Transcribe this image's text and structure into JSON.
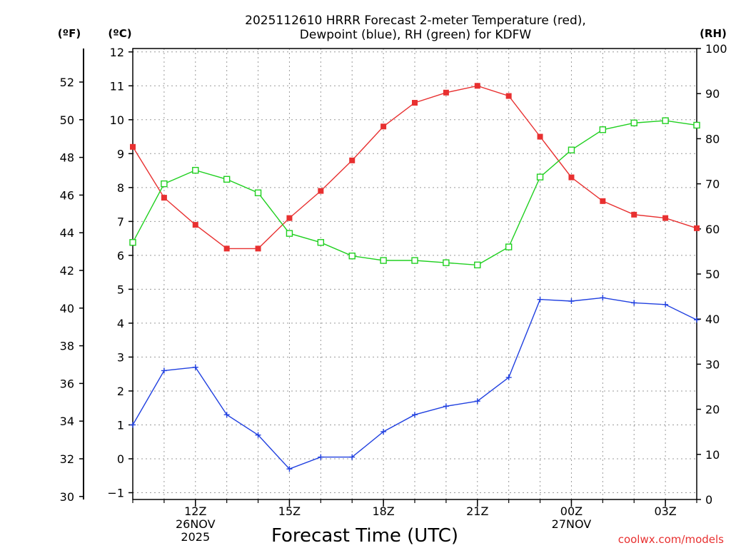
{
  "chart_data": {
    "type": "line",
    "title": [
      "2025112610 HRRR Forecast 2-meter Temperature (red),",
      "Dewpoint (blue), RH (green) for KDFW"
    ],
    "xlabel": "Forecast Time (UTC)",
    "watermark": "coolwx.com/models",
    "unit_labels": {
      "f": "(ºF)",
      "c": "(ºC)",
      "rh": "(RH)"
    },
    "x_hours": [
      10,
      11,
      12,
      13,
      14,
      15,
      16,
      17,
      18,
      19,
      20,
      21,
      22,
      23,
      24,
      25,
      26,
      27,
      28
    ],
    "xlim": [
      10,
      28
    ],
    "x_ticks": [
      {
        "h": 12,
        "lines": [
          "12Z",
          "26NOV",
          "2025"
        ]
      },
      {
        "h": 15,
        "lines": [
          "15Z"
        ]
      },
      {
        "h": 18,
        "lines": [
          "18Z"
        ]
      },
      {
        "h": 21,
        "lines": [
          "21Z"
        ]
      },
      {
        "h": 24,
        "lines": [
          "00Z",
          "27NOV"
        ]
      },
      {
        "h": 27,
        "lines": [
          "03Z"
        ]
      }
    ],
    "c_axis": {
      "range": [
        -1.2,
        12.1
      ],
      "ticks": [
        "−1",
        "0",
        "1",
        "2",
        "3",
        "4",
        "5",
        "6",
        "7",
        "8",
        "9",
        "10",
        "11",
        "12"
      ]
    },
    "f_axis": {
      "ticks": [
        "30",
        "32",
        "34",
        "36",
        "38",
        "40",
        "42",
        "44",
        "46",
        "48",
        "50",
        "52"
      ]
    },
    "rh_axis": {
      "range": [
        0,
        100
      ],
      "ticks": [
        "0",
        "10",
        "20",
        "30",
        "40",
        "50",
        "60",
        "70",
        "80",
        "90",
        "100"
      ]
    },
    "series": [
      {
        "name": "Temperature",
        "axis": "c",
        "color": "#e83030",
        "marker": "filled-square",
        "values": [
          9.2,
          7.7,
          6.9,
          6.2,
          6.2,
          7.1,
          7.9,
          8.8,
          9.8,
          10.5,
          10.8,
          11.0,
          10.7,
          9.5,
          8.3,
          7.6,
          7.2,
          7.1,
          6.8
        ]
      },
      {
        "name": "Dewpoint",
        "axis": "c",
        "color": "#2040e0",
        "marker": "plus",
        "values": [
          1.0,
          2.6,
          2.7,
          1.3,
          0.7,
          -0.3,
          0.05,
          0.05,
          0.8,
          1.3,
          1.55,
          1.7,
          2.4,
          4.7,
          4.65,
          4.75,
          4.6,
          4.55,
          4.1
        ]
      },
      {
        "name": "RH",
        "axis": "rh",
        "color": "#20d020",
        "marker": "open-square",
        "values": [
          57,
          70,
          73,
          71,
          68,
          59,
          57,
          54,
          53,
          53,
          52.5,
          52,
          56,
          71.5,
          77.5,
          82,
          83.5,
          84,
          83
        ]
      }
    ]
  }
}
